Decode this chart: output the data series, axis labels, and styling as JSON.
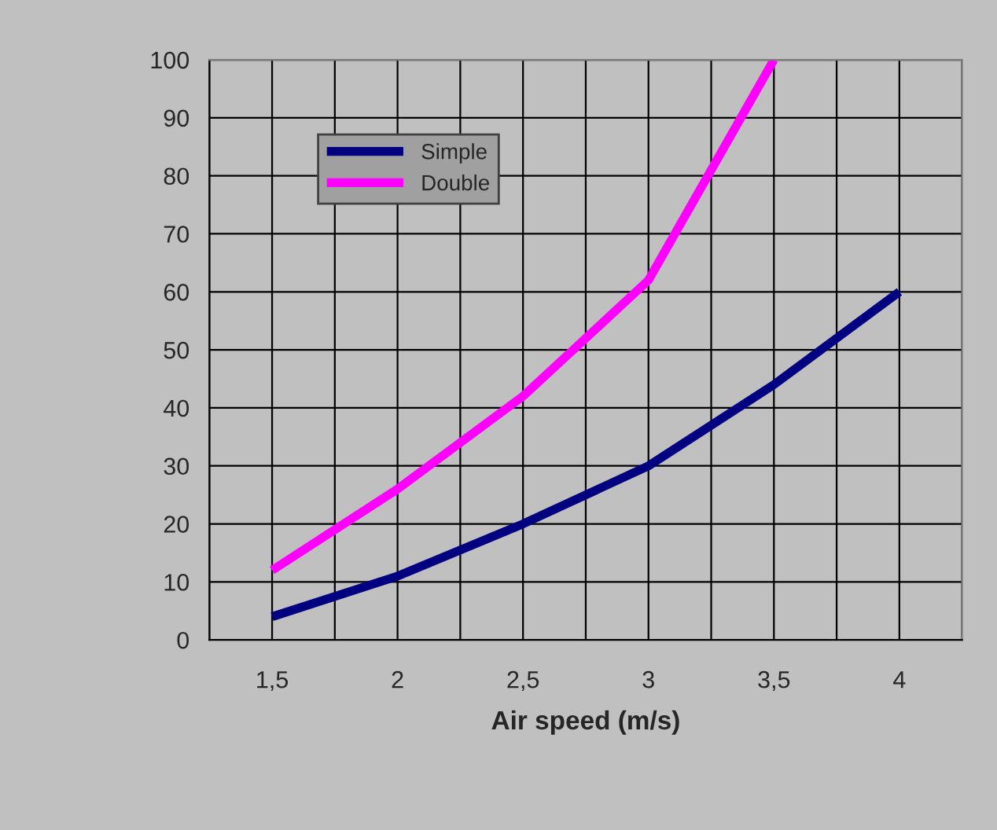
{
  "chart_data": {
    "type": "line",
    "xlabel": "Air speed (m/s)",
    "categories": [
      "1,5",
      "2",
      "2,5",
      "3",
      "3,5",
      "4"
    ],
    "series": [
      {
        "name": "Simple",
        "color": "#000080",
        "values": [
          4,
          11,
          20,
          30,
          44,
          60
        ]
      },
      {
        "name": "Double",
        "color": "#ff00ff",
        "values": [
          12,
          26,
          42,
          62,
          100,
          null
        ]
      }
    ],
    "ylim": [
      0,
      100
    ],
    "yticks": [
      0,
      10,
      20,
      30,
      40,
      50,
      60,
      70,
      80,
      90,
      100
    ],
    "grid": true,
    "legend": "top left",
    "marker": "none",
    "line_style": "solid"
  }
}
